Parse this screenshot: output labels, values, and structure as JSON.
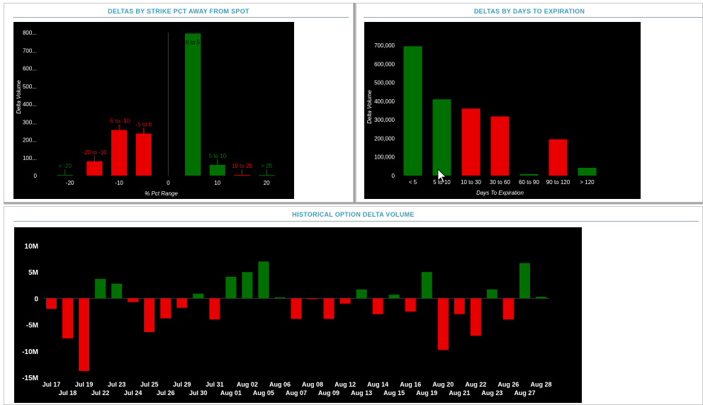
{
  "colors": {
    "positive": "#007000",
    "negative": "#e80000",
    "title": "#3aa0c0",
    "background": "#000000"
  },
  "panels": {
    "strike": {
      "title": "DELTAS BY STRIKE PCT AWAY FROM SPOT"
    },
    "expiry": {
      "title": "DELTAS BY DAYS TO EXPIRATION"
    },
    "history": {
      "title": "HISTORICAL OPTION DELTA VOLUME"
    }
  },
  "chart_data": [
    {
      "type": "bar",
      "title": "DELTAS BY STRIKE PCT AWAY FROM SPOT",
      "xlabel": "% Pct Range",
      "ylabel": "Delta Volume",
      "xlim": [
        -25,
        23
      ],
      "ylim": [
        0,
        800
      ],
      "y_ticks": [
        0,
        100,
        200,
        300,
        400,
        500,
        600,
        700,
        800
      ],
      "y_tick_labels": [
        "0",
        "100...",
        "200...",
        "300...",
        "400...",
        "500...",
        "600...",
        "700...",
        "800..."
      ],
      "x_ticks": [
        -20,
        -10,
        0,
        10,
        20
      ],
      "x_tick_labels": [
        "-20",
        "-10",
        "0",
        "10",
        "20"
      ],
      "bars": [
        {
          "label": "< -20",
          "center": -21,
          "width": 3.2,
          "value": 3,
          "sign": "positive"
        },
        {
          "label": "-20 to -10",
          "center": -15,
          "width": 3.2,
          "value": 80,
          "sign": "negative"
        },
        {
          "label": "-5 to -10",
          "center": -10,
          "width": 3.2,
          "value": 255,
          "sign": "negative"
        },
        {
          "label": "-5 to 0",
          "center": -5,
          "width": 3.2,
          "value": 235,
          "sign": "negative"
        },
        {
          "label": "0 to 5",
          "center": 5,
          "width": 3.2,
          "value": 795,
          "sign": "positive"
        },
        {
          "label": "5 to 10",
          "center": 10,
          "width": 3.2,
          "value": 60,
          "sign": "positive"
        },
        {
          "label": "10 to 20",
          "center": 15,
          "width": 3.2,
          "value": 3,
          "sign": "negative"
        },
        {
          "label": "> 20",
          "center": 20,
          "width": 3.2,
          "value": 3,
          "sign": "positive"
        }
      ]
    },
    {
      "type": "bar",
      "title": "DELTAS BY DAYS TO EXPIRATION",
      "xlabel": "Days To Expiration",
      "ylabel": "Delta Volume",
      "ylim": [
        0,
        700000
      ],
      "y_ticks": [
        0,
        100000,
        200000,
        300000,
        400000,
        500000,
        600000,
        700000
      ],
      "y_tick_labels": [
        "0",
        "100,000",
        "200,000",
        "300,000",
        "400,000",
        "500,000",
        "600,000",
        "700,000"
      ],
      "categories": [
        "< 5",
        "5 to 10",
        "10 to 30",
        "30 to 60",
        "60 to 90",
        "90 to 120",
        "> 120"
      ],
      "values": [
        695000,
        410000,
        360000,
        318000,
        8000,
        195000,
        42000
      ],
      "signs": [
        "positive",
        "positive",
        "negative",
        "negative",
        "positive",
        "negative",
        "positive"
      ]
    },
    {
      "type": "bar",
      "title": "HISTORICAL OPTION DELTA VOLUME",
      "ylim": [
        -15000000,
        10000000
      ],
      "y_ticks": [
        -15000000,
        -10000000,
        -5000000,
        0,
        5000000,
        10000000
      ],
      "y_tick_labels": [
        "-15M",
        "-10M",
        "-5M",
        "0",
        "5M",
        "10M"
      ],
      "categories": [
        "Jul 17",
        "Jul 18",
        "Jul 19",
        "Jul 22",
        "Jul 23",
        "Jul 24",
        "Jul 25",
        "Jul 26",
        "Jul 29",
        "Jul 30",
        "Jul 31",
        "Aug 01",
        "Aug 02",
        "Aug 05",
        "Aug 06",
        "Aug 07",
        "Aug 08",
        "Aug 09",
        "Aug 12",
        "Aug 13",
        "Aug 14",
        "Aug 15",
        "Aug 16",
        "Aug 19",
        "Aug 20",
        "Aug 21",
        "Aug 22",
        "Aug 23",
        "Aug 26",
        "Aug 27",
        "Aug 28"
      ],
      "values": [
        -2000000,
        -7600000,
        -13800000,
        3700000,
        2800000,
        -700000,
        -6400000,
        -3800000,
        -1800000,
        900000,
        -4000000,
        4100000,
        5000000,
        7000000,
        200000,
        -3900000,
        -150000,
        -3900000,
        -1000000,
        1700000,
        -3000000,
        700000,
        -2500000,
        5000000,
        -9800000,
        -3000000,
        -7100000,
        1700000,
        -4000000,
        6700000,
        300000
      ]
    }
  ]
}
